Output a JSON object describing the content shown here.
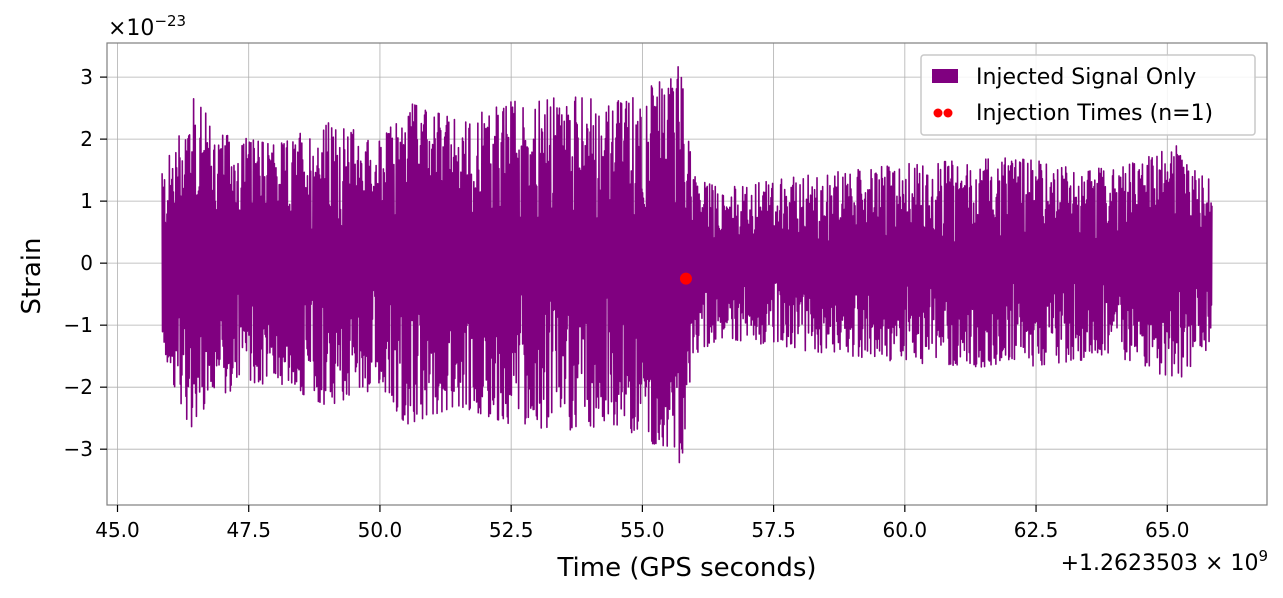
{
  "chart_data": {
    "type": "line",
    "xlabel": "Time (GPS seconds)",
    "ylabel": "Strain",
    "x_offset_label": "+1.2623503 × 10^9",
    "y_scale_label": "×10^−23",
    "xlim": [
      44.8,
      66.9
    ],
    "ylim": [
      -3.9,
      3.55
    ],
    "x_ticks": [
      45.0,
      47.5,
      50.0,
      52.5,
      55.0,
      57.5,
      60.0,
      62.5,
      65.0
    ],
    "x_tick_labels": [
      "45.0",
      "47.5",
      "50.0",
      "52.5",
      "55.0",
      "57.5",
      "60.0",
      "62.5",
      "65.0"
    ],
    "y_ticks": [
      -3,
      -2,
      -1,
      0,
      1,
      2,
      3
    ],
    "y_tick_labels": [
      "−3",
      "−2",
      "−1",
      "0",
      "1",
      "2",
      "3"
    ],
    "grid": true,
    "legend_position": "top-right",
    "series": [
      {
        "name": "Injected Signal Only",
        "kind": "line",
        "color": "#800080",
        "x_range": [
          45.85,
          65.85
        ],
        "envelope": [
          {
            "x": 45.85,
            "amp": 1.45
          },
          {
            "x": 46.4,
            "amp": 2.7
          },
          {
            "x": 47.0,
            "amp": 2.1
          },
          {
            "x": 48.0,
            "amp": 1.9
          },
          {
            "x": 49.0,
            "amp": 2.3
          },
          {
            "x": 50.0,
            "amp": 2.0
          },
          {
            "x": 50.5,
            "amp": 2.6
          },
          {
            "x": 51.5,
            "amp": 2.3
          },
          {
            "x": 52.5,
            "amp": 2.6
          },
          {
            "x": 53.5,
            "amp": 2.7
          },
          {
            "x": 54.5,
            "amp": 2.6
          },
          {
            "x": 55.4,
            "amp": 3.0
          },
          {
            "x": 55.75,
            "amp": 3.3
          },
          {
            "x": 55.95,
            "amp": 1.5
          },
          {
            "x": 56.5,
            "amp": 1.2
          },
          {
            "x": 58.0,
            "amp": 1.4
          },
          {
            "x": 60.0,
            "amp": 1.6
          },
          {
            "x": 62.0,
            "amp": 1.7
          },
          {
            "x": 64.0,
            "amp": 1.5
          },
          {
            "x": 65.2,
            "amp": 1.9
          },
          {
            "x": 65.85,
            "amp": 1.3
          }
        ]
      },
      {
        "name": "Injection Times (n=1)",
        "kind": "scatter",
        "color": "#ff0000",
        "points": [
          {
            "x": 55.83,
            "y": -0.25
          }
        ]
      }
    ]
  }
}
